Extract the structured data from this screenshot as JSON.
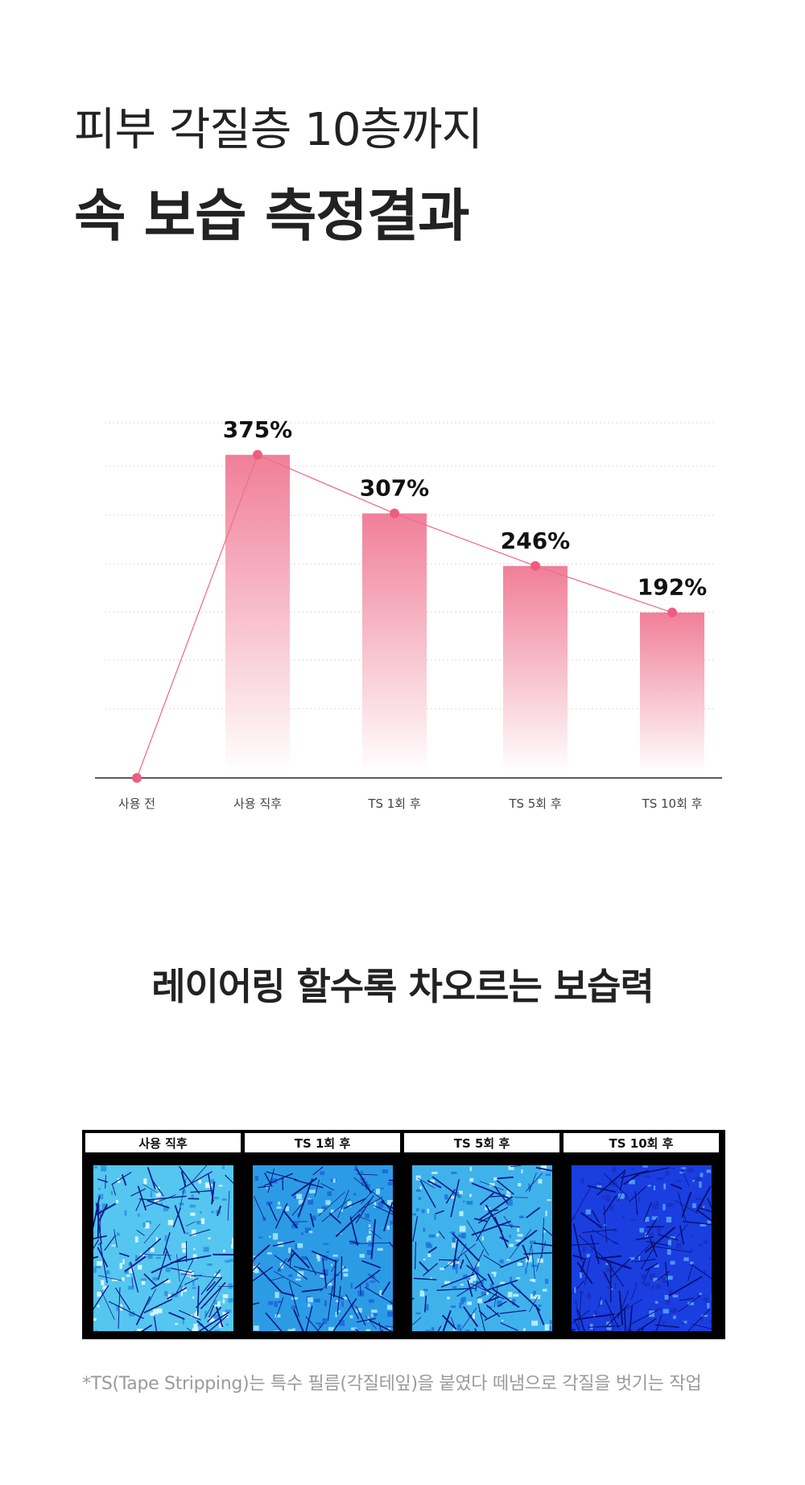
{
  "heading": {
    "line1": "피부 각질층 10층까지",
    "line2": "속 보습 측정결과"
  },
  "chart_data": {
    "type": "bar",
    "categories": [
      "사용 전",
      "사용 직후",
      "TS 1회 후",
      "TS 5회 후",
      "TS 10회 후"
    ],
    "values": [
      0,
      375,
      307,
      246,
      192
    ],
    "data_labels": [
      "",
      "375%",
      "307%",
      "246%",
      "192%"
    ],
    "bars_shown": [
      false,
      true,
      true,
      true,
      true
    ],
    "line_overlay": true,
    "ylim": [
      0,
      400
    ],
    "grid": true,
    "colors": {
      "bar_top": "#f07f98",
      "bar_bottom": "#ffffff",
      "line": "#ef6f8d",
      "point": "#ee5d80"
    }
  },
  "section2": {
    "title": "레이어링 할수록 차오르는 보습력",
    "panels": [
      {
        "label": "사용 직후",
        "tone": "light"
      },
      {
        "label": "TS 1회 후",
        "tone": "medium"
      },
      {
        "label": "TS 5회 후",
        "tone": "medium-light"
      },
      {
        "label": "TS 10회 후",
        "tone": "dark"
      }
    ]
  },
  "footnote": "*TS(Tape Stripping)는 특수 필름(각질테잎)을 붙였다 떼냄으로 각질을 벗기는 작업"
}
